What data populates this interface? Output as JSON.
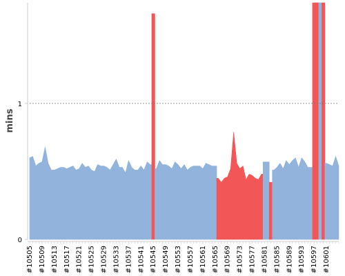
{
  "colors": {
    "normal": "#92b3dc",
    "failed": "#f25656",
    "threshold": "#777777",
    "axis": "#cccccc",
    "background": "#ffffff"
  },
  "chart_data": {
    "type": "area",
    "ylabel": "mins",
    "ylim": [
      0,
      1.74
    ],
    "yticks": [
      {
        "value": 0,
        "label": "0"
      },
      {
        "value": 1,
        "label": "1"
      }
    ],
    "threshold_line": 1,
    "grid": false,
    "legend": "none",
    "x_start_build": 10505,
    "xtick_labels": [
      "#10505",
      "#10509",
      "#10513",
      "#10517",
      "#10521",
      "#10525",
      "#10529",
      "#10533",
      "#10537",
      "#10541",
      "#10545",
      "#10549",
      "#10553",
      "#10557",
      "#10561",
      "#10565",
      "#10569",
      "#10573",
      "#10577",
      "#10581",
      "#10585",
      "#10589",
      "#10593",
      "#10597",
      "#10601"
    ],
    "values": [
      0.6,
      0.61,
      0.54,
      0.56,
      0.57,
      0.68,
      0.56,
      0.51,
      0.51,
      0.52,
      0.53,
      0.53,
      0.52,
      0.53,
      0.54,
      0.51,
      0.52,
      0.56,
      0.53,
      0.54,
      0.51,
      0.5,
      0.55,
      0.54,
      0.54,
      0.53,
      0.51,
      0.55,
      0.59,
      0.53,
      0.53,
      0.49,
      0.58,
      0.53,
      0.51,
      0.51,
      0.54,
      0.51,
      0.57,
      0.55,
      1.66,
      0.52,
      0.58,
      0.55,
      0.55,
      0.54,
      0.52,
      0.57,
      0.55,
      0.52,
      0.55,
      0.51,
      0.53,
      0.54,
      0.54,
      0.54,
      0.52,
      0.56,
      0.55,
      0.54,
      0.54,
      0.45,
      0.42,
      0.45,
      0.46,
      0.52,
      0.79,
      0.56,
      0.52,
      0.54,
      0.44,
      0.48,
      0.47,
      0.45,
      0.44,
      0.48,
      0.57,
      0.57,
      0.42,
      0.51,
      0.53,
      0.56,
      0.52,
      0.58,
      0.55,
      0.58,
      0.6,
      0.53,
      0.6,
      0.57,
      0.53,
      0.53,
      1.74,
      1.74,
      1.74,
      1.74,
      0.56,
      0.55,
      0.54,
      0.61,
      0.54
    ],
    "status": [
      "n",
      "n",
      "n",
      "n",
      "n",
      "n",
      "n",
      "n",
      "n",
      "n",
      "n",
      "n",
      "n",
      "n",
      "n",
      "n",
      "n",
      "n",
      "n",
      "n",
      "n",
      "n",
      "n",
      "n",
      "n",
      "n",
      "n",
      "n",
      "n",
      "n",
      "n",
      "n",
      "n",
      "n",
      "n",
      "n",
      "n",
      "n",
      "n",
      "n",
      "f",
      "n",
      "n",
      "n",
      "n",
      "n",
      "n",
      "n",
      "n",
      "n",
      "n",
      "n",
      "n",
      "n",
      "n",
      "n",
      "n",
      "n",
      "n",
      "n",
      "n",
      "f",
      "f",
      "f",
      "f",
      "f",
      "f",
      "f",
      "f",
      "f",
      "f",
      "f",
      "f",
      "f",
      "f",
      "f",
      "n",
      "n",
      "f",
      "n",
      "n",
      "n",
      "n",
      "n",
      "n",
      "n",
      "n",
      "n",
      "n",
      "n",
      "n",
      "n",
      "f",
      "f",
      "n",
      "f",
      "n",
      "n",
      "n",
      "n",
      "n"
    ]
  }
}
